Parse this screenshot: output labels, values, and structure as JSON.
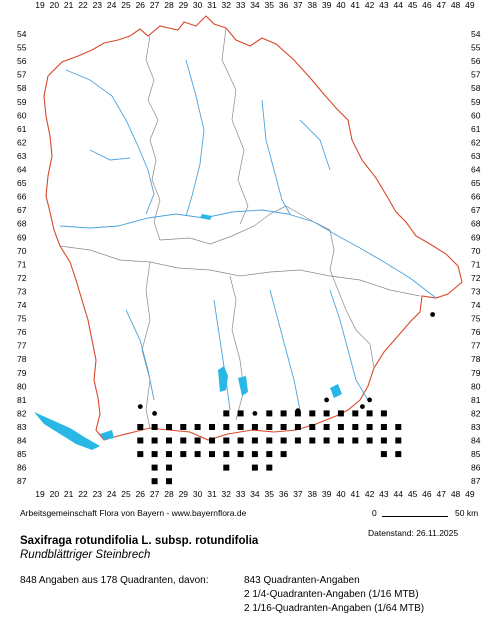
{
  "map": {
    "x_labels": [
      "19",
      "20",
      "21",
      "22",
      "23",
      "24",
      "25",
      "26",
      "27",
      "28",
      "29",
      "30",
      "31",
      "32",
      "33",
      "34",
      "35",
      "36",
      "37",
      "38",
      "39",
      "40",
      "41",
      "42",
      "43",
      "44",
      "45",
      "46",
      "47",
      "48",
      "49"
    ],
    "y_labels": [
      "54",
      "55",
      "56",
      "57",
      "58",
      "59",
      "60",
      "61",
      "62",
      "63",
      "64",
      "65",
      "66",
      "67",
      "68",
      "69",
      "70",
      "71",
      "72",
      "73",
      "74",
      "75",
      "76",
      "77",
      "78",
      "79",
      "80",
      "81",
      "82",
      "83",
      "84",
      "85",
      "86",
      "87"
    ],
    "colors": {
      "border": "#d9482b",
      "districts": "#888888",
      "rivers": "#4aa3df",
      "lakes": "#29b8e6",
      "marks": "#000000"
    },
    "occurrences_squares": [
      [
        26,
        83
      ],
      [
        26,
        84
      ],
      [
        26,
        85
      ],
      [
        27,
        83
      ],
      [
        27,
        84
      ],
      [
        27,
        85
      ],
      [
        27,
        86
      ],
      [
        27,
        87
      ],
      [
        28,
        83
      ],
      [
        28,
        84
      ],
      [
        28,
        85
      ],
      [
        28,
        86
      ],
      [
        28,
        87
      ],
      [
        29,
        83
      ],
      [
        29,
        84
      ],
      [
        29,
        85
      ],
      [
        30,
        83
      ],
      [
        30,
        84
      ],
      [
        30,
        85
      ],
      [
        31,
        83
      ],
      [
        31,
        84
      ],
      [
        31,
        85
      ],
      [
        32,
        82
      ],
      [
        32,
        83
      ],
      [
        32,
        84
      ],
      [
        32,
        85
      ],
      [
        32,
        86
      ],
      [
        33,
        82
      ],
      [
        33,
        83
      ],
      [
        33,
        84
      ],
      [
        33,
        85
      ],
      [
        34,
        83
      ],
      [
        34,
        84
      ],
      [
        34,
        85
      ],
      [
        34,
        86
      ],
      [
        35,
        82
      ],
      [
        35,
        83
      ],
      [
        35,
        84
      ],
      [
        35,
        85
      ],
      [
        35,
        86
      ],
      [
        36,
        82
      ],
      [
        36,
        83
      ],
      [
        36,
        84
      ],
      [
        36,
        85
      ],
      [
        37,
        82
      ],
      [
        37,
        83
      ],
      [
        37,
        84
      ],
      [
        38,
        82
      ],
      [
        38,
        83
      ],
      [
        38,
        84
      ],
      [
        39,
        82
      ],
      [
        39,
        83
      ],
      [
        39,
        84
      ],
      [
        40,
        82
      ],
      [
        40,
        83
      ],
      [
        40,
        84
      ],
      [
        41,
        82
      ],
      [
        41,
        83
      ],
      [
        41,
        84
      ],
      [
        42,
        82
      ],
      [
        42,
        83
      ],
      [
        42,
        84
      ],
      [
        43,
        82
      ],
      [
        43,
        83
      ],
      [
        43,
        84
      ],
      [
        43,
        85
      ],
      [
        44,
        83
      ],
      [
        44,
        84
      ],
      [
        44,
        85
      ]
    ],
    "occurrences_dots": [
      [
        26,
        81.5
      ],
      [
        27,
        82
      ],
      [
        28,
        83
      ],
      [
        34,
        82
      ],
      [
        35,
        82
      ],
      [
        37,
        81.8
      ],
      [
        39,
        81
      ],
      [
        42,
        81
      ],
      [
        46.4,
        74.7
      ],
      [
        41.5,
        81.5
      ]
    ]
  },
  "credit": "Arbeitsgemeinschaft Flora von Bayern - www.bayernflora.de",
  "scale": {
    "zero": "0",
    "max": "50 km"
  },
  "date": "Datenstand: 26.11.2025",
  "title": "Saxifraga rotundifolia L. subsp. rotundifolia",
  "subtitle": "Rundblättriger Steinbrech",
  "stats": {
    "total": "848 Angaben aus 178 Quadranten, davon:",
    "quadrant": "843 Quadranten-Angaben",
    "quarter": "2 1/4-Quadranten-Angaben (1/16 MTB)",
    "sixteenth": "2 1/16-Quadranten-Angaben (1/64 MTB)"
  }
}
